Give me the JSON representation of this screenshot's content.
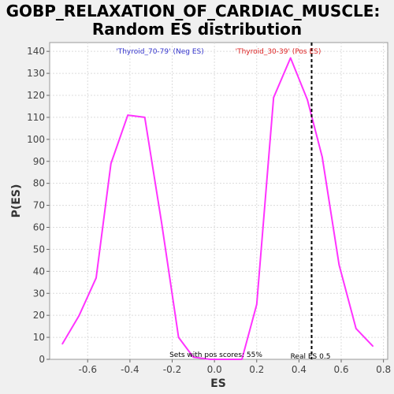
{
  "chart_data": {
    "type": "line",
    "title_line1": "GOBP_RELAXATION_OF_CARDIAC_MUSCLE:",
    "title_line2": "Random ES distribution",
    "xlabel": "ES",
    "ylabel": "P(ES)",
    "xlim": [
      -0.78,
      0.82
    ],
    "ylim": [
      0,
      144
    ],
    "xticks": [
      -0.6,
      -0.4,
      -0.2,
      0.0,
      0.2,
      0.4,
      0.6,
      0.8
    ],
    "xtick_labels": [
      "-0.6",
      "-0.4",
      "-0.2",
      "0.0",
      "0.2",
      "0.4",
      "0.6",
      "0.8"
    ],
    "yticks": [
      0,
      10,
      20,
      30,
      40,
      50,
      60,
      70,
      80,
      90,
      100,
      110,
      120,
      130,
      140
    ],
    "ytick_labels": [
      "0",
      "10",
      "20",
      "30",
      "40",
      "50",
      "60",
      "70",
      "80",
      "90",
      "100",
      "110",
      "120",
      "130",
      "140"
    ],
    "grid": true,
    "line_color": "#ff33ff",
    "x": [
      -0.72,
      -0.64,
      -0.56,
      -0.49,
      -0.41,
      -0.33,
      -0.25,
      -0.17,
      -0.1,
      -0.02,
      0.05,
      0.13,
      0.2,
      0.28,
      0.36,
      0.44,
      0.51,
      0.59,
      0.67,
      0.75
    ],
    "y": [
      7,
      20,
      37,
      89,
      111,
      110,
      62,
      10,
      1,
      0,
      0,
      0,
      25,
      119,
      137,
      118,
      92,
      43,
      14,
      6
    ],
    "real_es": 0.46,
    "real_es_label": "Real ES 0.5",
    "neg_label": "'Thyroid_70-79' (Neg ES)",
    "neg_color": "#3333cc",
    "pos_label": "'Thyroid_30-39' (Pos ES)",
    "pos_color": "#dd2222",
    "pos_scores_note": "Sets with pos scores: 55%"
  }
}
